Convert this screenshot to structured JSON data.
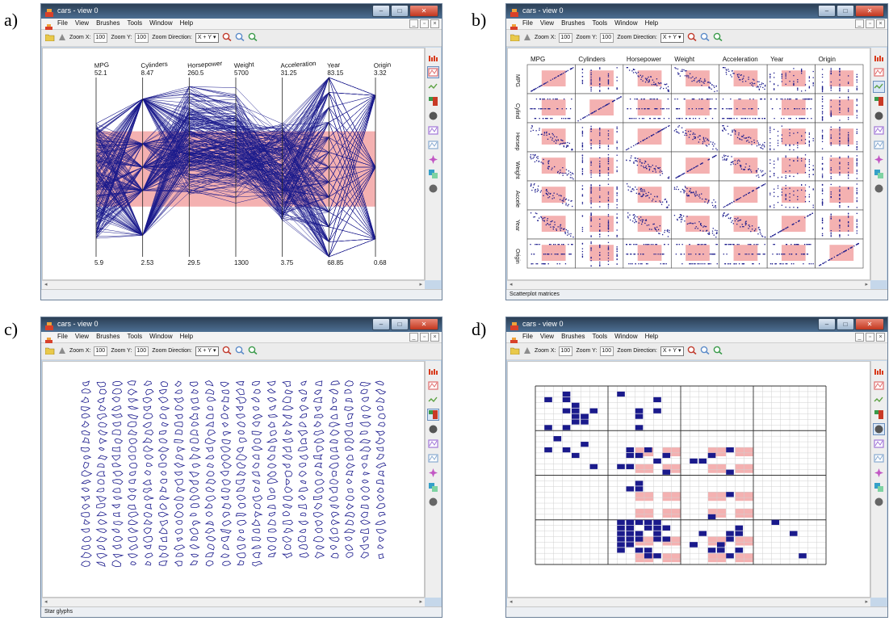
{
  "panels": [
    {
      "label": "a)",
      "status": ""
    },
    {
      "label": "b)",
      "status": "Scatterplot matrices"
    },
    {
      "label": "c)",
      "status": "Star glyphs"
    },
    {
      "label": "d)",
      "status": ""
    }
  ],
  "window": {
    "title": "cars - view 0",
    "menu": [
      "File",
      "View",
      "Brushes",
      "Tools",
      "Window",
      "Help"
    ],
    "zoom_x_label": "Zoom X:",
    "zoom_x_value": "100",
    "zoom_y_label": "Zoom Y:",
    "zoom_y_value": "100",
    "zoom_direction_label": "Zoom Direction:",
    "zoom_direction_value": "X + Y"
  },
  "parallel_coords": {
    "axes": [
      {
        "name": "MPG",
        "max": "52.1",
        "min": "5.9"
      },
      {
        "name": "Cylinders",
        "max": "8.47",
        "min": "2.53"
      },
      {
        "name": "Horsepower",
        "max": "260.5",
        "min": "29.5"
      },
      {
        "name": "Weight",
        "max": "5700",
        "min": "1300"
      },
      {
        "name": "Acceleration",
        "max": "31.25",
        "min": "3.75"
      },
      {
        "name": "Year",
        "max": "83.15",
        "min": "68.85"
      },
      {
        "name": "Origin",
        "max": "3.32",
        "min": "0.68"
      }
    ]
  },
  "scatter_matrix": {
    "columns": [
      "MPG",
      "Cylinders",
      "Horsepower",
      "Weight",
      "Acceleration",
      "Year",
      "Origin"
    ],
    "rows": [
      "MPG",
      "Cylind",
      "Horsep",
      "Weight",
      "Accele",
      "Year",
      "Origin"
    ]
  },
  "colors": {
    "brush": "#f4b1b1",
    "data": "#1a1a8c",
    "title_bar": "#3b5675",
    "frame": "#c5d7ea"
  },
  "icons": [
    "brush-tool-icon",
    "parallel-coords-icon",
    "scatterplot-matrix-icon",
    "star-glyph-icon",
    "dimensional-stacking-icon",
    "circle-icon",
    "histogram-icon",
    "line-chart-icon",
    "star-icon",
    "treemap-icon",
    "circle-icon"
  ]
}
